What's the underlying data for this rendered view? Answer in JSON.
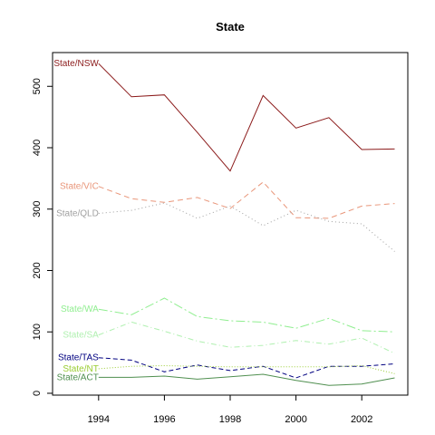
{
  "chart_data": {
    "type": "line",
    "title": "State",
    "xlabel": "",
    "ylabel": "",
    "x": [
      1994,
      1995,
      1996,
      1997,
      1998,
      1999,
      2000,
      2001,
      2002,
      2003
    ],
    "xlim": [
      1992.6,
      2003.4
    ],
    "ylim": [
      -3,
      555
    ],
    "x_ticks": [
      1994,
      1996,
      1998,
      2000,
      2002
    ],
    "y_ticks": [
      0,
      100,
      200,
      300,
      400,
      500
    ],
    "grid": false,
    "legend": "none",
    "series": [
      {
        "name": "State/NSW",
        "color": "#8b1a1a",
        "dash": "",
        "values": [
          537,
          483,
          486,
          425,
          362,
          485,
          432,
          449,
          397,
          398
        ]
      },
      {
        "name": "State/VIC",
        "color": "#e9967a",
        "dash": "6,4",
        "values": [
          337,
          317,
          311,
          319,
          301,
          344,
          286,
          285,
          305,
          309
        ]
      },
      {
        "name": "State/QLD",
        "color": "#a0a0a0",
        "dash": "1,3",
        "values": [
          293,
          298,
          310,
          285,
          305,
          273,
          298,
          280,
          276,
          231
        ]
      },
      {
        "name": "State/WA",
        "color": "#90ee90",
        "dash": "10,3,2,3",
        "values": [
          137,
          128,
          155,
          125,
          118,
          116,
          106,
          122,
          102,
          100
        ]
      },
      {
        "name": "State/SA",
        "color": "#b0f0b0",
        "dash": "6,3,1,3",
        "values": [
          95,
          116,
          101,
          85,
          75,
          78,
          86,
          80,
          90,
          65
        ]
      },
      {
        "name": "State/TAS",
        "color": "#000080",
        "dash": "5,3",
        "values": [
          58,
          54,
          35,
          46,
          37,
          44,
          25,
          44,
          44,
          48
        ]
      },
      {
        "name": "State/NT",
        "color": "#9acd32",
        "dash": "1,2",
        "values": [
          40,
          44,
          45,
          44,
          43,
          43,
          43,
          43,
          45,
          32
        ]
      },
      {
        "name": "State/ACT",
        "color": "#4f8f4f",
        "dash": "",
        "values": [
          26,
          26,
          28,
          23,
          27,
          31,
          21,
          13,
          15,
          25
        ]
      }
    ]
  }
}
